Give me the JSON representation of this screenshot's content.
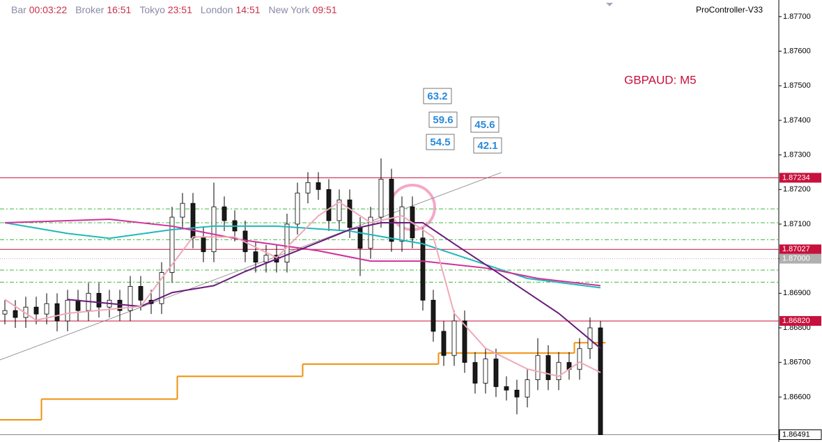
{
  "header": {
    "items": [
      {
        "label": "Bar",
        "value": "00:03:22"
      },
      {
        "label": "Broker",
        "value": "16:51"
      },
      {
        "label": "Tokyo",
        "value": "23:51"
      },
      {
        "label": "London",
        "value": "14:51"
      },
      {
        "label": "New York",
        "value": "09:51"
      }
    ],
    "indicator": "ProController-V33"
  },
  "chart_data": {
    "type": "candlestick",
    "title": "GBPAUD: M5",
    "title_color": "#c8103c",
    "open": [
      1.8684,
      1.8685,
      1.8683,
      1.8686,
      1.8684,
      1.8687,
      1.8682,
      1.8688,
      1.8685,
      1.869,
      1.8686,
      1.8688,
      1.8685,
      1.8692,
      1.8688,
      1.8687,
      1.8696,
      1.8712,
      1.8716,
      1.8706,
      1.8702,
      1.8715,
      1.8711,
      1.8708,
      1.8702,
      1.8699,
      1.8701,
      1.8699,
      1.871,
      1.8719,
      1.8722,
      1.872,
      1.8711,
      1.8717,
      1.8709,
      1.8703,
      1.8712,
      1.8723,
      1.8705,
      1.8715,
      1.8706,
      1.8688,
      1.8679,
      1.8672,
      1.8682,
      1.867,
      1.8664,
      1.8671,
      1.8663,
      1.8662,
      1.866,
      1.8665,
      1.8672,
      1.8665,
      1.867,
      1.8668,
      1.8674,
      1.868
    ],
    "high": [
      1.8688,
      1.8688,
      1.8689,
      1.8689,
      1.869,
      1.869,
      1.8691,
      1.8691,
      1.8693,
      1.8693,
      1.8691,
      1.8691,
      1.8695,
      1.8695,
      1.8691,
      1.8699,
      1.8715,
      1.8719,
      1.8719,
      1.8709,
      1.8722,
      1.8718,
      1.8714,
      1.8711,
      1.8705,
      1.8704,
      1.8704,
      1.8713,
      1.8722,
      1.8725,
      1.8725,
      1.8723,
      1.872,
      1.872,
      1.8712,
      1.8715,
      1.8729,
      1.8726,
      1.8718,
      1.8718,
      1.8709,
      1.8691,
      1.8682,
      1.8685,
      1.8685,
      1.8673,
      1.8674,
      1.8674,
      1.8666,
      1.8665,
      1.8668,
      1.8677,
      1.8675,
      1.8673,
      1.8673,
      1.8677,
      1.8683,
      1.8682
    ],
    "low": [
      1.8681,
      1.868,
      1.868,
      1.8681,
      1.8681,
      1.8679,
      1.8679,
      1.8682,
      1.8682,
      1.8683,
      1.8683,
      1.8682,
      1.8682,
      1.8685,
      1.8684,
      1.8684,
      1.8693,
      1.8709,
      1.8703,
      1.8699,
      1.8699,
      1.8708,
      1.8705,
      1.8699,
      1.8696,
      1.8696,
      1.8696,
      1.8696,
      1.8707,
      1.8716,
      1.8717,
      1.8708,
      1.8708,
      1.8706,
      1.8695,
      1.87,
      1.8709,
      1.8702,
      1.8702,
      1.8703,
      1.8685,
      1.8676,
      1.8669,
      1.8669,
      1.8667,
      1.8661,
      1.8661,
      1.866,
      1.8659,
      1.8655,
      1.8657,
      1.8662,
      1.8662,
      1.8662,
      1.8665,
      1.8665,
      1.8671,
      1.86491
    ],
    "close": [
      1.8685,
      1.8683,
      1.8686,
      1.8684,
      1.8687,
      1.8682,
      1.8688,
      1.8685,
      1.869,
      1.8686,
      1.8688,
      1.8685,
      1.8692,
      1.8688,
      1.8687,
      1.8696,
      1.8712,
      1.8716,
      1.8706,
      1.8702,
      1.8715,
      1.8711,
      1.8708,
      1.8702,
      1.8699,
      1.8701,
      1.8699,
      1.871,
      1.8719,
      1.8722,
      1.872,
      1.8711,
      1.8717,
      1.8709,
      1.8703,
      1.8712,
      1.8723,
      1.8705,
      1.8715,
      1.8706,
      1.8688,
      1.8679,
      1.8672,
      1.8682,
      1.867,
      1.8664,
      1.8671,
      1.8663,
      1.8662,
      1.866,
      1.8665,
      1.8672,
      1.8665,
      1.867,
      1.8668,
      1.8674,
      1.868,
      1.86491
    ],
    "up_color": "#ffffff",
    "down_color": "#1a1a1a",
    "ylim": [
      1.8648,
      1.87748
    ],
    "yticks": [
      {
        "value": 1.877,
        "label": "1.87700"
      },
      {
        "value": 1.876,
        "label": "1.87600"
      },
      {
        "value": 1.875,
        "label": "1.87500"
      },
      {
        "value": 1.874,
        "label": "1.87400"
      },
      {
        "value": 1.873,
        "label": "1.87300"
      },
      {
        "value": 1.872,
        "label": "1.87200"
      },
      {
        "value": 1.871,
        "label": "1.87100"
      },
      {
        "value": 1.87,
        "label": "1.87000"
      },
      {
        "value": 1.869,
        "label": "1.86900"
      },
      {
        "value": 1.868,
        "label": "1.86800"
      },
      {
        "value": 1.867,
        "label": "1.86700"
      },
      {
        "value": 1.866,
        "label": "1.86600"
      }
    ],
    "lines": [
      {
        "color": "#20b8b8",
        "x": [
          0,
          6,
          10,
          16,
          20,
          26,
          33,
          40,
          46,
          50,
          57
        ],
        "values": [
          1.87104,
          1.87073,
          1.87059,
          1.87084,
          1.87094,
          1.87094,
          1.8708,
          1.87043,
          1.86983,
          1.86943,
          1.86916
        ]
      },
      {
        "color": "#d0309a",
        "x": [
          0,
          10,
          16,
          23,
          30,
          35,
          40,
          46,
          51,
          57
        ],
        "values": [
          1.87104,
          1.87114,
          1.87094,
          1.87053,
          1.87023,
          1.86993,
          1.86993,
          1.86973,
          1.86943,
          1.86922
        ]
      },
      {
        "color": "#6a1a7a",
        "x": [
          6,
          13,
          16,
          20,
          23,
          28,
          33,
          36,
          40,
          43,
          47,
          53,
          57
        ],
        "values": [
          1.86882,
          1.86862,
          1.86902,
          1.86922,
          1.86963,
          1.87023,
          1.87084,
          1.87104,
          1.87104,
          1.87043,
          1.86963,
          1.86842,
          1.86741
        ]
      },
      {
        "color": "#f0a8b8",
        "x": [
          0,
          3,
          6,
          13,
          16,
          18,
          22,
          26,
          30,
          32,
          35,
          38,
          41,
          43,
          46,
          50,
          53,
          55,
          57
        ],
        "values": [
          1.86882,
          1.86822,
          1.86842,
          1.86862,
          1.86983,
          1.87063,
          1.87063,
          1.87003,
          1.87124,
          1.87164,
          1.87104,
          1.87124,
          1.87063,
          1.86842,
          1.86741,
          1.86681,
          1.8666,
          1.86701,
          1.86671
        ]
      }
    ],
    "step_line": {
      "color": "#f0900a",
      "x": [
        -0.5,
        3.5,
        16.5,
        28.5,
        41.5,
        54.5
      ],
      "values": [
        1.86534,
        1.86594,
        1.8666,
        1.86695,
        1.86727,
        1.86757
      ]
    },
    "trendline": {
      "color": "#808080",
      "x": [
        -0.5,
        47.5
      ],
      "values": [
        1.86707,
        1.87249
      ]
    },
    "levels": {
      "color": "#3cb83c",
      "values": [
        1.87144,
        1.87104,
        1.87055,
        1.86967,
        1.86932
      ]
    },
    "price_lines": [
      {
        "value": 1.87234,
        "color": "#c8103c",
        "text_color": "#ffffff"
      },
      {
        "value": 1.87027,
        "color": "#c8103c",
        "text_color": "#ffffff"
      },
      {
        "value": 1.87,
        "label": "1.87000",
        "color": "#b0b0b0",
        "text_color": "#ffffff"
      },
      {
        "value": 1.8682,
        "label": "1.86820",
        "color": "#c8103c",
        "text_color": "#ffffff"
      },
      {
        "value": 1.86491,
        "color": "#ffffff",
        "text_color": "#000000"
      }
    ],
    "annotations": [
      "63.2",
      "59.6",
      "54.5",
      "45.6",
      "42.1"
    ],
    "annotation_color": "#2a8ad8"
  }
}
